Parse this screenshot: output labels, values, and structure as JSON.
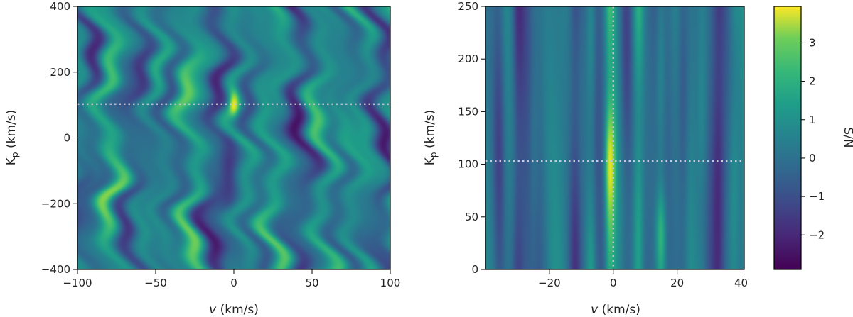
{
  "chart_data": [
    {
      "type": "heatmap",
      "panel": "left",
      "xlabel": "v (km/s)",
      "ylabel": "Kp (km/s)",
      "xlim": [
        -100,
        100
      ],
      "ylim": [
        -400,
        400
      ],
      "xticks": [
        -100,
        -50,
        0,
        50,
        100
      ],
      "yticks": [
        -400,
        -200,
        0,
        200,
        400
      ],
      "xtick_labels": [
        "−100",
        "−50",
        "0",
        "50",
        "100"
      ],
      "ytick_labels": [
        "−400",
        "−200",
        "0",
        "200",
        "400"
      ],
      "dotted_lines": {
        "horizontal_y": 103,
        "vertical_x": null
      },
      "peak": {
        "x": 0,
        "y": 103,
        "value": 3.0
      }
    },
    {
      "type": "heatmap",
      "panel": "right",
      "xlabel": "v (km/s)",
      "ylabel": "Kp (km/s)",
      "xlim": [
        -40,
        41
      ],
      "ylim": [
        0,
        250
      ],
      "xticks": [
        -20,
        0,
        20,
        40
      ],
      "yticks": [
        0,
        50,
        100,
        150,
        200,
        250
      ],
      "xtick_labels": [
        "−20",
        "0",
        "20",
        "40"
      ],
      "ytick_labels": [
        "0",
        "50",
        "100",
        "150",
        "200",
        "250"
      ],
      "dotted_lines": {
        "horizontal_y": 103,
        "vertical_x": 0
      },
      "peak": {
        "x": -1,
        "y": 103,
        "value": 3.9
      },
      "bright_streaks_x": [
        -1,
        8,
        -7,
        15,
        28,
        -25,
        38
      ],
      "dark_streaks_x": [
        -12,
        -30,
        4,
        22,
        -36,
        33
      ]
    }
  ],
  "colorbar": {
    "label": "S/N",
    "range": [
      -2.9,
      3.95
    ],
    "ticks": [
      -2,
      -1,
      0,
      1,
      2,
      3
    ],
    "tick_labels": [
      "−2",
      "−1",
      "0",
      "1",
      "2",
      "3"
    ],
    "colormap": "viridis"
  },
  "colors": {
    "viridis_low": "#440154",
    "viridis_mid": "#21918c",
    "viridis_high": "#fde725",
    "dotted_line": "#c8c8d8"
  }
}
